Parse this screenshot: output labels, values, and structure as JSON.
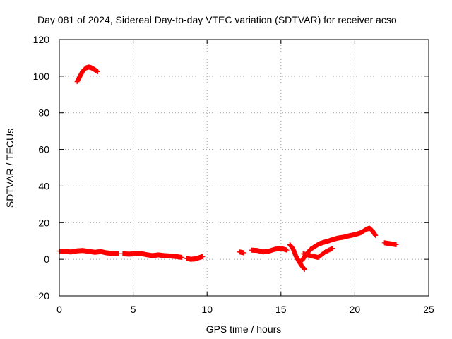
{
  "chart_data": {
    "type": "scatter",
    "title": "Day 081 of 2024, Sidereal Day-to-day VTEC variation (SDTVAR) for receiver acso",
    "xlabel": "GPS time / hours",
    "ylabel": "SDTVAR / TECUs",
    "xlim": [
      0,
      25
    ],
    "ylim": [
      -20,
      120
    ],
    "xticks": [
      0,
      5,
      10,
      15,
      20,
      25
    ],
    "yticks": [
      -20,
      0,
      20,
      40,
      60,
      80,
      100,
      120
    ],
    "grid": true,
    "marker": "+",
    "color": "#ff0000",
    "series": [
      {
        "name": "SDTVAR",
        "segments": [
          {
            "x": [
              1.2,
              1.4,
              1.6,
              1.8,
              2.0,
              2.2,
              2.4,
              2.6
            ],
            "y": [
              97,
              100,
              103,
              104.5,
              105,
              104.5,
              103.5,
              102.5
            ]
          },
          {
            "x": [
              0.0,
              0.4,
              0.8,
              1.2,
              1.6,
              2.0,
              2.4,
              2.8,
              3.2,
              3.6,
              4.0
            ],
            "y": [
              4.5,
              4.2,
              4.0,
              4.6,
              4.8,
              4.3,
              3.8,
              4.2,
              3.5,
              3.2,
              3.0
            ]
          },
          {
            "x": [
              4.3,
              4.7,
              5.1,
              5.5,
              5.9,
              6.3,
              6.7,
              7.1,
              7.5,
              7.9,
              8.3
            ],
            "y": [
              3.0,
              2.8,
              3.0,
              3.2,
              2.5,
              2.0,
              2.4,
              2.0,
              1.8,
              1.5,
              1.0
            ]
          },
          {
            "x": [
              8.6,
              8.9,
              9.2,
              9.5,
              9.7
            ],
            "y": [
              0.5,
              0.0,
              0.2,
              1.0,
              1.5
            ]
          },
          {
            "x": [
              12.2,
              12.5
            ],
            "y": [
              4.0,
              3.5
            ]
          },
          {
            "x": [
              13.0,
              13.4,
              13.8,
              14.2,
              14.6,
              15.0,
              15.4
            ],
            "y": [
              5.0,
              4.8,
              4.0,
              4.5,
              5.5,
              6.0,
              5.0
            ]
          },
          {
            "x": [
              15.6,
              15.8,
              16.0,
              16.2,
              16.4,
              16.6
            ],
            "y": [
              8.0,
              6.0,
              2.0,
              -1.0,
              -3.5,
              -5.5
            ]
          },
          {
            "x": [
              16.4,
              16.6,
              16.8,
              17.0,
              17.3,
              17.6,
              18.0,
              18.4,
              18.8,
              19.2,
              19.6,
              20.0,
              20.4,
              20.8,
              21.0,
              21.2,
              21.4
            ],
            "y": [
              -1.0,
              1.5,
              3.5,
              5.5,
              7.0,
              8.5,
              9.5,
              10.5,
              11.5,
              12.0,
              12.8,
              13.5,
              14.5,
              16.5,
              17.0,
              15.5,
              13.0
            ]
          },
          {
            "x": [
              16.5,
              17.0,
              17.5,
              18.0,
              18.5
            ],
            "y": [
              3.0,
              2.0,
              1.0,
              4.0,
              6.0
            ]
          },
          {
            "x": [
              22.0,
              22.4,
              22.8
            ],
            "y": [
              9.0,
              8.5,
              8.0
            ]
          }
        ]
      }
    ]
  }
}
